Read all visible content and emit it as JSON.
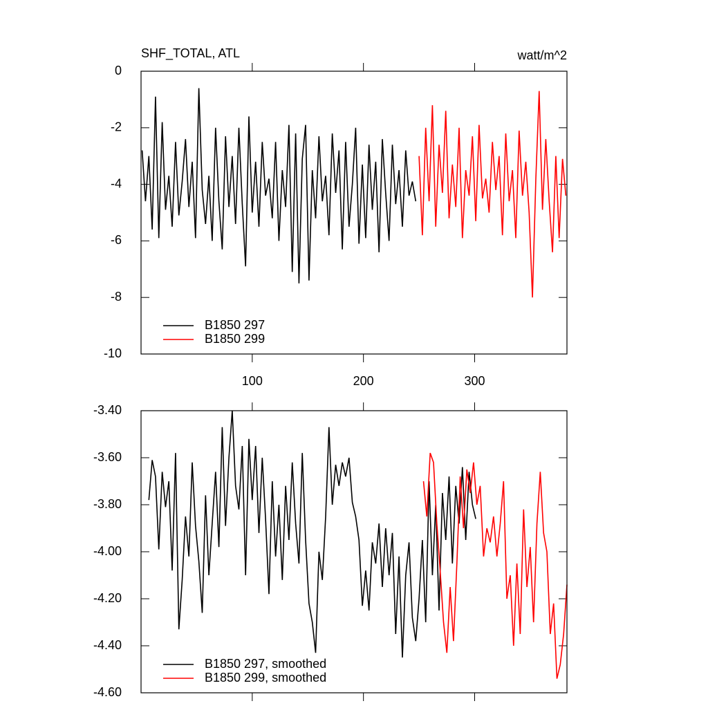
{
  "chart_data": [
    {
      "type": "line",
      "title": "SHF_TOTAL, ATL",
      "units": "watt/m^2",
      "xlim": [
        0,
        383
      ],
      "xticks": [
        100,
        200,
        300
      ],
      "show_xtick_labels": true,
      "ylim": [
        -10,
        0
      ],
      "yticks": [
        0,
        -2,
        -4,
        -6,
        -8,
        -10
      ],
      "legend": "lower left",
      "series": [
        {
          "name": "B1850 297",
          "color": "#000000",
          "x": [
            1,
            4,
            7,
            10,
            13,
            16,
            19,
            22,
            25,
            28,
            31,
            34,
            37,
            40,
            43,
            46,
            49,
            52,
            55,
            58,
            61,
            64,
            67,
            70,
            73,
            76,
            79,
            82,
            85,
            88,
            91,
            94,
            97,
            100,
            103,
            106,
            109,
            112,
            115,
            118,
            121,
            124,
            127,
            130,
            133,
            136,
            139,
            142,
            145,
            148,
            151,
            154,
            157,
            160,
            163,
            166,
            169,
            172,
            175,
            178,
            181,
            184,
            187,
            190,
            193,
            196,
            199,
            202,
            205,
            208,
            211,
            214,
            217,
            220,
            223,
            226,
            229,
            232,
            235,
            238,
            241,
            244,
            247
          ],
          "values": [
            -2.8,
            -4.6,
            -3.0,
            -5.6,
            -0.9,
            -5.9,
            -1.8,
            -4.9,
            -3.7,
            -5.5,
            -2.5,
            -5.1,
            -3.9,
            -2.4,
            -4.8,
            -3.2,
            -5.9,
            -0.6,
            -4.2,
            -5.4,
            -3.7,
            -6.0,
            -2.0,
            -4.6,
            -6.3,
            -2.3,
            -4.8,
            -3.0,
            -5.4,
            -2.0,
            -4.7,
            -6.9,
            -1.6,
            -5.0,
            -3.2,
            -5.5,
            -2.5,
            -4.4,
            -3.8,
            -5.2,
            -2.5,
            -6.0,
            -3.5,
            -4.8,
            -1.9,
            -7.1,
            -2.2,
            -7.5,
            -3.1,
            -1.9,
            -7.4,
            -3.5,
            -5.2,
            -2.3,
            -4.6,
            -3.7,
            -5.8,
            -2.2,
            -4.3,
            -2.8,
            -6.3,
            -2.5,
            -5.5,
            -4.0,
            -2.0,
            -6.1,
            -3.3,
            -5.9,
            -2.6,
            -4.9,
            -3.2,
            -6.4,
            -2.4,
            -4.3,
            -6.0,
            -2.6,
            -4.7,
            -3.5,
            -5.5,
            -2.8,
            -4.4,
            -3.9,
            -4.6
          ]
        },
        {
          "name": "B1850 299",
          "color": "#ff0000",
          "x": [
            250,
            253,
            256,
            259,
            262,
            265,
            268,
            271,
            274,
            277,
            280,
            283,
            286,
            289,
            292,
            295,
            298,
            301,
            304,
            307,
            310,
            313,
            316,
            319,
            322,
            325,
            328,
            331,
            334,
            337,
            340,
            343,
            346,
            349,
            352,
            355,
            358,
            361,
            364,
            367,
            370,
            373,
            376,
            379,
            382
          ],
          "values": [
            -3.0,
            -5.8,
            -2.0,
            -4.6,
            -1.2,
            -5.5,
            -2.6,
            -4.3,
            -1.4,
            -5.2,
            -3.3,
            -4.8,
            -2.0,
            -5.9,
            -3.5,
            -4.4,
            -2.3,
            -5.3,
            -1.9,
            -4.5,
            -3.8,
            -5.0,
            -2.5,
            -4.2,
            -3.0,
            -5.8,
            -2.2,
            -4.6,
            -3.5,
            -5.9,
            -2.1,
            -4.4,
            -3.2,
            -5.0,
            -8.0,
            -3.8,
            -0.7,
            -4.9,
            -2.4,
            -4.6,
            -6.4,
            -3.0,
            -5.9,
            -3.1,
            -4.4
          ]
        }
      ]
    },
    {
      "type": "line",
      "xlim": [
        0,
        383
      ],
      "xticks": [
        100,
        200,
        300
      ],
      "show_xtick_labels": false,
      "ylim": [
        -4.6,
        -3.4
      ],
      "yticks": [
        {
          "value": -3.4,
          "label": "-3.40"
        },
        {
          "value": -3.6,
          "label": "-3.60"
        },
        {
          "value": -3.8,
          "label": "-3.80"
        },
        {
          "value": -4.0,
          "label": "-4.00"
        },
        {
          "value": -4.2,
          "label": "-4.20"
        },
        {
          "value": -4.4,
          "label": "-4.40"
        },
        {
          "value": -4.6,
          "label": "-4.60"
        }
      ],
      "legend": "lower left",
      "series": [
        {
          "name": "B1850 297, smoothed",
          "color": "#000000",
          "x": [
            7,
            10,
            13,
            16,
            19,
            22,
            25,
            28,
            31,
            34,
            37,
            40,
            43,
            46,
            49,
            52,
            55,
            58,
            61,
            64,
            67,
            70,
            73,
            76,
            79,
            82,
            85,
            88,
            91,
            94,
            97,
            100,
            103,
            106,
            109,
            112,
            115,
            118,
            121,
            124,
            127,
            130,
            133,
            136,
            139,
            142,
            145,
            148,
            151,
            154,
            157,
            160,
            163,
            166,
            169,
            172,
            175,
            178,
            181,
            184,
            187,
            190,
            193,
            196,
            199,
            202,
            205,
            208,
            211,
            214,
            217,
            220,
            223,
            226,
            229,
            232,
            235,
            238,
            241,
            244,
            247,
            250,
            253,
            256,
            259,
            262,
            265,
            268,
            271,
            274,
            277,
            280,
            283,
            286,
            289,
            292,
            295,
            298,
            301
          ],
          "values": [
            -3.78,
            -3.61,
            -3.68,
            -3.99,
            -3.66,
            -3.81,
            -3.7,
            -4.08,
            -3.58,
            -4.33,
            -4.12,
            -3.85,
            -4.02,
            -3.62,
            -3.89,
            -4.04,
            -4.26,
            -3.76,
            -4.1,
            -3.88,
            -3.66,
            -3.98,
            -3.47,
            -3.89,
            -3.6,
            -3.4,
            -3.72,
            -3.82,
            -3.55,
            -4.1,
            -3.52,
            -3.78,
            -3.55,
            -3.92,
            -3.6,
            -3.86,
            -4.18,
            -3.7,
            -4.02,
            -3.8,
            -4.12,
            -3.72,
            -3.95,
            -3.62,
            -3.88,
            -4.05,
            -3.58,
            -3.95,
            -4.22,
            -4.3,
            -4.43,
            -4.0,
            -4.12,
            -3.85,
            -3.47,
            -3.8,
            -3.63,
            -3.72,
            -3.62,
            -3.68,
            -3.6,
            -3.79,
            -3.85,
            -3.95,
            -4.23,
            -4.08,
            -4.25,
            -3.96,
            -4.05,
            -3.88,
            -4.15,
            -3.9,
            -4.1,
            -3.92,
            -4.35,
            -4.02,
            -4.45,
            -4.1,
            -3.96,
            -4.28,
            -4.38,
            -4.2,
            -3.95,
            -4.3,
            -3.7,
            -4.1,
            -3.8,
            -4.25,
            -3.75,
            -3.95,
            -3.68,
            -4.05,
            -3.72,
            -3.88,
            -3.64,
            -3.95,
            -3.66,
            -3.8,
            -3.86
          ]
        },
        {
          "name": "B1850 299, smoothed",
          "color": "#ff0000",
          "x": [
            254,
            257,
            260,
            263,
            266,
            269,
            272,
            275,
            278,
            281,
            284,
            287,
            290,
            293,
            296,
            299,
            302,
            305,
            308,
            311,
            314,
            317,
            320,
            323,
            326,
            329,
            332,
            335,
            338,
            341,
            344,
            347,
            350,
            353,
            356,
            359,
            362,
            365,
            368,
            371,
            374,
            377,
            380,
            383
          ],
          "values": [
            -3.7,
            -3.85,
            -3.58,
            -3.62,
            -3.88,
            -4.08,
            -4.3,
            -4.43,
            -4.15,
            -4.38,
            -4.05,
            -3.68,
            -3.9,
            -3.65,
            -3.75,
            -3.62,
            -3.8,
            -3.72,
            -4.02,
            -3.9,
            -3.96,
            -3.85,
            -4.02,
            -3.88,
            -3.7,
            -4.2,
            -4.1,
            -4.4,
            -4.05,
            -4.35,
            -3.82,
            -4.15,
            -3.98,
            -4.3,
            -3.88,
            -3.66,
            -3.92,
            -4.0,
            -4.35,
            -4.22,
            -4.54,
            -4.48,
            -4.35,
            -4.14
          ]
        }
      ]
    }
  ]
}
